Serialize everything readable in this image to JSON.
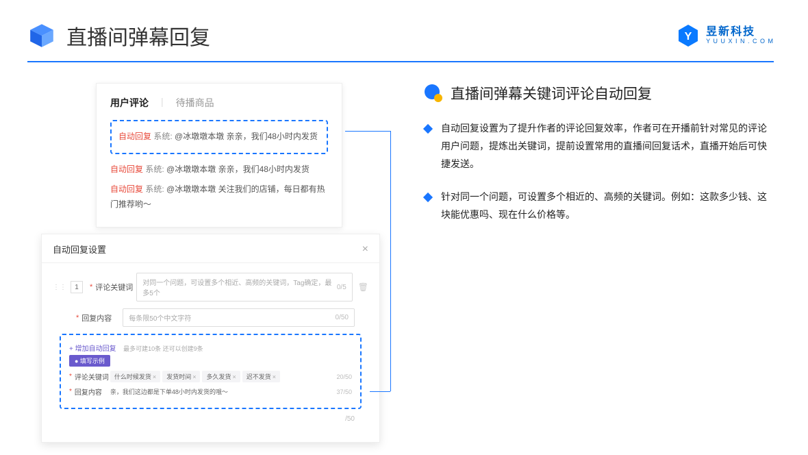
{
  "header": {
    "title": "直播间弹幕回复",
    "logo_cn": "昱新科技",
    "logo_en": "Y U U X I N . C O M"
  },
  "comments": {
    "tab_active": "用户评论",
    "tab_inactive": "待播商品",
    "auto_label": "自动回复",
    "sys_label": "系统:",
    "row1": "@冰墩墩本墩 亲亲，我们48小时内发货",
    "row2": "@冰墩墩本墩 亲亲，我们48小时内发货",
    "row3": "@冰墩墩本墩 关注我们的店铺，每日都有热门推荐哟～"
  },
  "settings": {
    "title": "自动回复设置",
    "idx": "1",
    "label_keyword": "评论关键词",
    "placeholder_keyword": "对同一个问题，可设置多个相近、高频的关键词，Tag确定，最多5个",
    "counter_keyword": "0/5",
    "label_content": "回复内容",
    "placeholder_content": "每条限50个中文字符",
    "counter_content": "0/50",
    "add_link": "+ 增加自动回复",
    "add_hint": "最多可建10条 还可以创建9条",
    "example_badge": "● 填写示例",
    "ex_label_kw": "评论关键词",
    "tags": [
      "什么时候发货",
      "发货时间",
      "多久发货",
      "迟不发货"
    ],
    "ex_counter_kw": "20/50",
    "ex_label_ct": "回复内容",
    "ex_content": "亲，我们这边都是下单48小时内发货的哦～",
    "ex_counter_ct": "37/50",
    "bottom_counter": "/50"
  },
  "right": {
    "section_title": "直播间弹幕关键词评论自动回复",
    "p1": "自动回复设置为了提升作者的评论回复效率，作者可在开播前针对常见的评论用户问题，提炼出关键词，提前设置常用的直播间回复话术，直播开始后可快捷发送。",
    "p2": "针对同一个问题，可设置多个相近的、高频的关键词。例如：这款多少钱、这块能优惠吗、现在什么价格等。"
  }
}
